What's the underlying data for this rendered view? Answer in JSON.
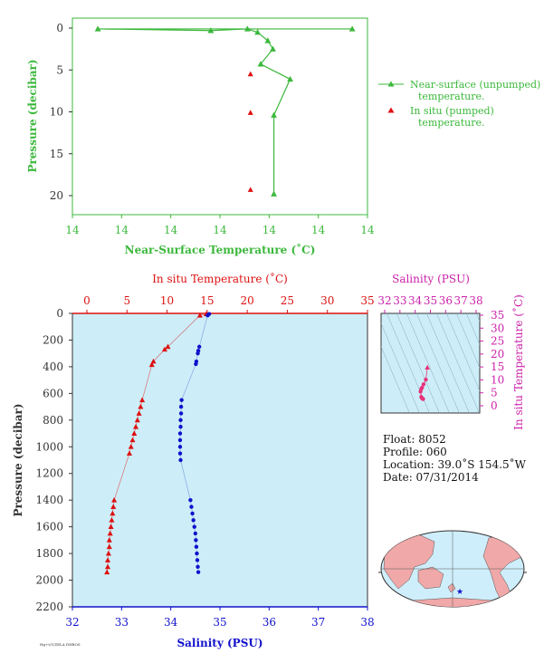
{
  "colors": {
    "green": "#3cb83c",
    "red": "#dd1111",
    "blue": "#1111cc",
    "magenta": "#cc22aa",
    "pink": "#e8337a",
    "dark": "#333333",
    "panel_bg": "#cdeef8",
    "land": "#f0a8a8",
    "ocean": "#cfeefb"
  },
  "chart_data": [
    {
      "type": "line",
      "id": "near-surface",
      "xlabel": "Near-Surface Temperature (˚C)",
      "ylabel": "Pressure (decibar)",
      "x_tick_labels": [
        "14",
        "14",
        "14",
        "14",
        "14",
        "14",
        "14"
      ],
      "y_ticks": [
        0,
        5,
        10,
        15,
        20
      ],
      "y_range": [
        0,
        22
      ],
      "legend": {
        "position": "right",
        "entries": [
          "Near-surface (unpumped) temperature.",
          "In situ (pumped) temperature."
        ]
      },
      "series": [
        {
          "name": "Near-surface (unpumped) temperature.",
          "marker": "triangle",
          "line": true,
          "points": [
            [
              14.005,
              0.1
            ],
            [
              13.755,
              0.1
            ],
            [
              13.866,
              0.3
            ],
            [
              13.902,
              0.1
            ],
            [
              13.912,
              0.5
            ],
            [
              13.922,
              1.5
            ],
            [
              13.927,
              2.5
            ],
            [
              13.915,
              4.3
            ],
            [
              13.944,
              6.1
            ],
            [
              13.928,
              10.4
            ],
            [
              13.928,
              19.8
            ]
          ]
        },
        {
          "name": "In situ (pumped) temperature.",
          "marker": "triangle",
          "line": false,
          "points": [
            [
              13.905,
              5.5
            ],
            [
              13.905,
              10.1
            ],
            [
              13.905,
              19.3
            ]
          ]
        }
      ]
    },
    {
      "type": "line",
      "id": "profile",
      "xlabel_top": "In situ Temperature (˚C)",
      "xlabel_bottom": "Salinity (PSU)",
      "ylabel": "Pressure (decibar)",
      "temp_ticks": [
        0,
        5,
        10,
        15,
        20,
        25,
        30,
        35
      ],
      "sal_ticks": [
        32,
        33,
        34,
        35,
        36,
        37,
        38
      ],
      "y_ticks": [
        0,
        200,
        400,
        600,
        800,
        1000,
        1200,
        1400,
        1600,
        1800,
        2000,
        2200
      ],
      "series": [
        {
          "name": "In situ Temperature",
          "axis": "temperature",
          "marker": "triangle",
          "points": [
            [
              14.9,
              5
            ],
            [
              14.1,
              15
            ],
            [
              10.1,
              250
            ],
            [
              9.7,
              270
            ],
            [
              8.3,
              360
            ],
            [
              8.1,
              385
            ],
            [
              6.9,
              650
            ],
            [
              6.7,
              700
            ],
            [
              6.5,
              750
            ],
            [
              6.3,
              800
            ],
            [
              6.1,
              850
            ],
            [
              5.9,
              900
            ],
            [
              5.7,
              950
            ],
            [
              5.5,
              1000
            ],
            [
              5.3,
              1050
            ],
            [
              3.4,
              1400
            ],
            [
              3.3,
              1450
            ],
            [
              3.2,
              1500
            ],
            [
              3.1,
              1550
            ],
            [
              3.0,
              1600
            ],
            [
              2.9,
              1650
            ],
            [
              2.8,
              1700
            ],
            [
              2.8,
              1750
            ],
            [
              2.7,
              1800
            ],
            [
              2.6,
              1850
            ],
            [
              2.6,
              1900
            ],
            [
              2.5,
              1940
            ]
          ]
        },
        {
          "name": "Salinity",
          "axis": "salinity",
          "marker": "dot",
          "points": [
            [
              34.78,
              5
            ],
            [
              34.75,
              15
            ],
            [
              34.58,
              250
            ],
            [
              34.56,
              280
            ],
            [
              34.55,
              300
            ],
            [
              34.52,
              360
            ],
            [
              34.51,
              380
            ],
            [
              34.22,
              650
            ],
            [
              34.21,
              700
            ],
            [
              34.21,
              750
            ],
            [
              34.2,
              800
            ],
            [
              34.2,
              850
            ],
            [
              34.19,
              900
            ],
            [
              34.19,
              950
            ],
            [
              34.19,
              1000
            ],
            [
              34.19,
              1050
            ],
            [
              34.2,
              1100
            ],
            [
              34.4,
              1400
            ],
            [
              34.42,
              1450
            ],
            [
              34.44,
              1500
            ],
            [
              34.46,
              1550
            ],
            [
              34.48,
              1600
            ],
            [
              34.5,
              1650
            ],
            [
              34.51,
              1700
            ],
            [
              34.52,
              1750
            ],
            [
              34.53,
              1800
            ],
            [
              34.54,
              1850
            ],
            [
              34.55,
              1900
            ],
            [
              34.56,
              1940
            ]
          ]
        }
      ]
    },
    {
      "type": "scatter",
      "id": "ts-diagram",
      "xlabel": "Salinity (PSU)",
      "ylabel": "In situ Temperature (˚C)",
      "x_ticks": [
        32,
        33,
        34,
        35,
        36,
        37,
        38
      ],
      "y_ticks": [
        0,
        5,
        10,
        15,
        20,
        25,
        30,
        35
      ],
      "points": [
        [
          34.8,
          14.8
        ],
        [
          34.7,
          10.1
        ],
        [
          34.55,
          8.3
        ],
        [
          34.45,
          7.0
        ],
        [
          34.4,
          6.5
        ],
        [
          34.35,
          5.5
        ],
        [
          34.4,
          3.4
        ],
        [
          34.45,
          2.9
        ],
        [
          34.5,
          2.7
        ],
        [
          34.52,
          2.6
        ]
      ]
    }
  ],
  "float_info": {
    "float": "Float:  8052",
    "profile": "Profile:  060",
    "location": "Location:  39.0˚S  154.5˚W",
    "date": "Date:  07/31/2014"
  },
  "credit": "Hg+t/Y/ZELA DHBOS"
}
